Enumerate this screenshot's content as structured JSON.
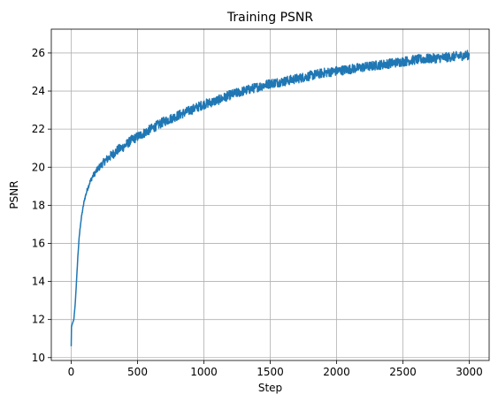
{
  "chart_data": {
    "type": "line",
    "title": "Training PSNR",
    "xlabel": "Step",
    "ylabel": "PSNR",
    "xlim": [
      -150,
      3150
    ],
    "ylim": [
      9.85,
      27.25
    ],
    "xticks": [
      0,
      500,
      1000,
      1500,
      2000,
      2500,
      3000
    ],
    "yticks": [
      10,
      12,
      14,
      16,
      18,
      20,
      22,
      24,
      26
    ],
    "grid": true,
    "series": [
      {
        "color": "#1f77b4",
        "noise_amplitude": 0.25,
        "x": [
          0,
          2,
          5,
          10,
          20,
          30,
          40,
          50,
          60,
          70,
          80,
          90,
          100,
          120,
          140,
          160,
          180,
          200,
          250,
          300,
          350,
          400,
          450,
          500,
          600,
          700,
          800,
          900,
          1000,
          1100,
          1200,
          1300,
          1400,
          1500,
          1600,
          1700,
          1800,
          1900,
          2000,
          2100,
          2200,
          2300,
          2400,
          2500,
          2600,
          2700,
          2800,
          2900,
          3000
        ],
        "y": [
          10.6,
          11.6,
          11.7,
          11.8,
          12.0,
          12.8,
          14.0,
          15.3,
          16.3,
          17.0,
          17.5,
          17.9,
          18.3,
          18.8,
          19.2,
          19.5,
          19.7,
          19.9,
          20.3,
          20.6,
          20.9,
          21.1,
          21.4,
          21.6,
          22.0,
          22.4,
          22.7,
          23.0,
          23.3,
          23.5,
          23.8,
          24.0,
          24.2,
          24.4,
          24.5,
          24.65,
          24.8,
          24.95,
          25.05,
          25.15,
          25.25,
          25.35,
          25.45,
          25.55,
          25.65,
          25.7,
          25.75,
          25.82,
          25.9
        ]
      }
    ]
  }
}
